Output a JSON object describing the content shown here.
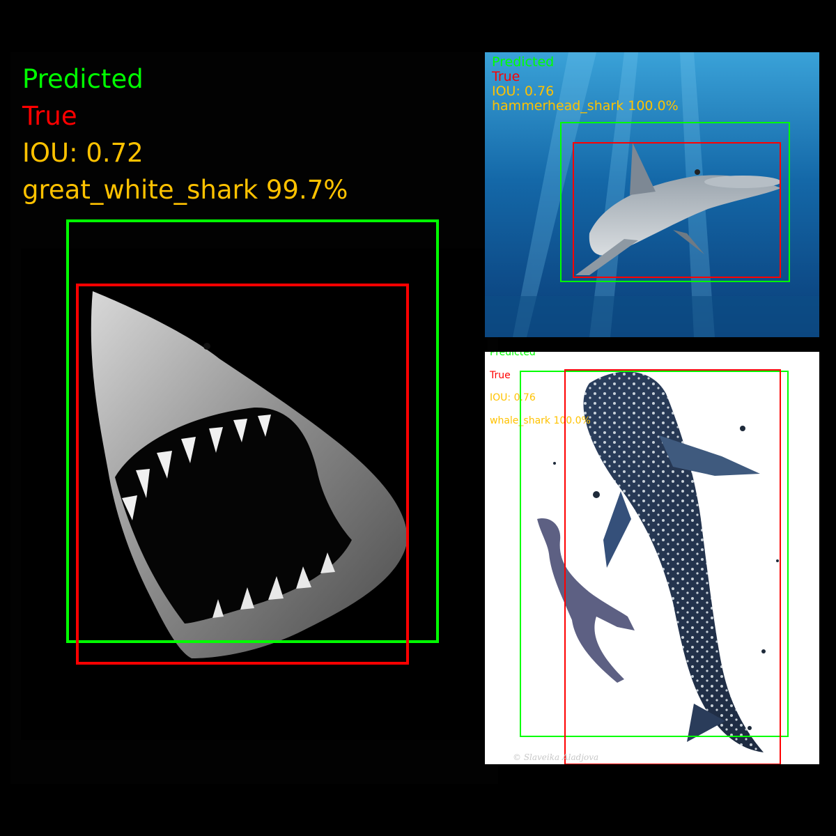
{
  "colors": {
    "predicted": "#00ff00",
    "true": "#ff0000",
    "info": "#ffc200",
    "background": "#000000"
  },
  "panels": [
    {
      "legend_predicted": "Predicted",
      "legend_true": "True",
      "iou": "IOU: 0.72",
      "class_label": "great_white_shark 99.7%",
      "subject": "great-white-shark-photo"
    },
    {
      "legend_predicted": "Predicted",
      "legend_true": "True",
      "iou": "IOU: 0.76",
      "class_label": "hammerhead_shark 100.0%",
      "subject": "hammerhead-shark-photo"
    },
    {
      "legend_predicted": "Predicted",
      "legend_true": "True",
      "iou": "IOU: 0.76",
      "class_label": "whale_shark 100.0%",
      "subject": "whale-shark-watercolor",
      "watermark": "© Slaveika Aladjova"
    }
  ]
}
